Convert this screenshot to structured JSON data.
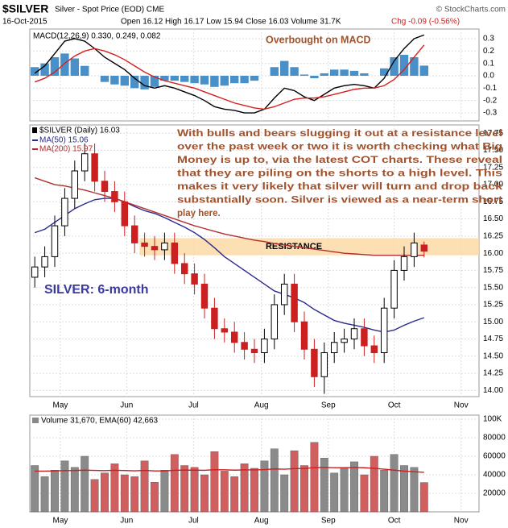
{
  "header": {
    "symbol": "$SILVER",
    "name": "Silver - Spot Price (EOD) CME",
    "source": "© StockCharts.com",
    "date": "16-Oct-2015",
    "summary": "Open 16.12 High 16.17 Low 15.94 Close 16.03 Volume 31.7K",
    "change": "Chg -0.09 (-0.56%)"
  },
  "chart_data": [
    {
      "type": "macd",
      "legend": "MACD(12,26,9) 0.330, 0.249, 0.082",
      "annotation": "Overbought on MACD",
      "xlim": [
        0,
        45
      ],
      "ylim": [
        -0.365,
        0.378
      ],
      "yticks": [
        0.3,
        0.2,
        0.1,
        {
          "value": 0,
          "label": "0.0"
        },
        -0.1,
        -0.2,
        -0.3
      ],
      "series": [
        {
          "name": "MACD",
          "color": "#000000",
          "values": [
            0.02,
            0.08,
            0.18,
            0.28,
            0.3,
            0.28,
            0.22,
            0.15,
            0.1,
            0.05,
            -0.02,
            -0.08,
            -0.1,
            -0.08,
            -0.1,
            -0.13,
            -0.16,
            -0.2,
            -0.25,
            -0.27,
            -0.28,
            -0.3,
            -0.3,
            -0.27,
            -0.18,
            -0.1,
            -0.12,
            -0.17,
            -0.2,
            -0.15,
            -0.1,
            -0.08,
            -0.07,
            -0.08,
            -0.1,
            -0.02,
            0.12,
            0.22,
            0.3,
            0.33
          ]
        },
        {
          "name": "Signal",
          "color": "#d62020",
          "values": [
            -0.05,
            -0.02,
            0.03,
            0.1,
            0.16,
            0.2,
            0.22,
            0.2,
            0.17,
            0.13,
            0.08,
            0.03,
            -0.01,
            -0.04,
            -0.06,
            -0.08,
            -0.1,
            -0.13,
            -0.16,
            -0.19,
            -0.22,
            -0.24,
            -0.26,
            -0.27,
            -0.25,
            -0.22,
            -0.19,
            -0.18,
            -0.18,
            -0.17,
            -0.15,
            -0.13,
            -0.11,
            -0.1,
            -0.1,
            -0.08,
            -0.03,
            0.05,
            0.15,
            0.249
          ]
        }
      ],
      "histogram": {
        "color": "#4a90c8",
        "values": [
          0.07,
          0.1,
          0.15,
          0.18,
          0.14,
          0.08,
          0.0,
          -0.05,
          -0.07,
          -0.08,
          -0.1,
          -0.11,
          -0.09,
          -0.04,
          -0.04,
          -0.05,
          -0.06,
          -0.07,
          -0.09,
          -0.08,
          -0.06,
          -0.06,
          -0.04,
          0.0,
          0.07,
          0.12,
          0.07,
          0.01,
          -0.02,
          0.02,
          0.05,
          0.05,
          0.04,
          0.02,
          0.0,
          0.06,
          0.15,
          0.17,
          0.15,
          0.082
        ]
      }
    },
    {
      "type": "candlestick",
      "legend": "$SILVER (Daily) 16.03",
      "label": "SILVER: 6-month",
      "annotation_lines": [
        "With bulls and bears slugging it out at a resistance level",
        "over the past week or two it is worth checking what Big",
        "Money is up to, via the latest COT charts. These reveal",
        "that they are piling on the shorts to a high level. This",
        "makes it very likely that silver will turn and drop back",
        "substantially soon. Silver is viewed as a near-term short",
        "play here."
      ],
      "resistance": {
        "label": "RESISTANCE",
        "range": [
          15.97,
          16.22
        ],
        "color": "#fbd9a6"
      },
      "xlim": [
        0,
        45
      ],
      "xticks": [
        {
          "value": 3.06,
          "label": "May"
        },
        {
          "value": 9.7,
          "label": "Jun"
        },
        {
          "value": 16.4,
          "label": "Jul"
        },
        {
          "value": 23.2,
          "label": "Aug"
        },
        {
          "value": 29.9,
          "label": "Sep"
        },
        {
          "value": 36.5,
          "label": "Oct"
        },
        {
          "value": 43.2,
          "label": "Nov"
        }
      ],
      "ylim": [
        13.91,
        17.87
      ],
      "yticks": [
        {
          "value": 17.75,
          "label": "17.75"
        },
        {
          "value": 17.5,
          "label": "17.50"
        },
        {
          "value": 17.25,
          "label": "17.25"
        },
        {
          "value": 17,
          "label": "17.00"
        },
        {
          "value": 16.75,
          "label": "16.75"
        },
        {
          "value": 16.5,
          "label": "16.50"
        },
        {
          "value": 16.25,
          "label": "16.25"
        },
        {
          "value": 16,
          "label": "16.00"
        },
        {
          "value": 15.75,
          "label": "15.75"
        },
        {
          "value": 15.5,
          "label": "15.50"
        },
        {
          "value": 15.25,
          "label": "15.25"
        },
        {
          "value": 15,
          "label": "15.00"
        },
        {
          "value": 14.75,
          "label": "14.75"
        },
        {
          "value": 14.5,
          "label": "14.50"
        },
        {
          "value": 14.25,
          "label": "14.25"
        },
        {
          "value": 14,
          "label": "14.00"
        }
      ],
      "up_color": "#000000",
      "down_color": "#cc1f1f",
      "open": [
        15.65,
        15.8,
        15.95,
        16.4,
        16.8,
        17.2,
        17.45,
        17.05,
        16.9,
        16.75,
        16.4,
        16.15,
        16.1,
        16.05,
        16.15,
        15.85,
        15.7,
        15.55,
        15.2,
        14.9,
        14.85,
        14.7,
        14.6,
        14.55,
        14.75,
        15.25,
        15.55,
        15.0,
        14.6,
        14.2,
        14.55,
        14.7,
        14.75,
        14.9,
        14.65,
        14.55,
        15.2,
        15.75,
        15.95,
        16.12
      ],
      "high": [
        15.95,
        16.1,
        16.55,
        16.95,
        17.35,
        17.6,
        17.6,
        17.2,
        17.05,
        16.9,
        16.55,
        16.3,
        16.25,
        16.3,
        16.3,
        16.0,
        15.85,
        15.7,
        15.35,
        15.05,
        15.0,
        14.85,
        14.75,
        14.9,
        15.4,
        15.7,
        15.7,
        15.15,
        14.75,
        14.7,
        14.85,
        14.9,
        15.05,
        15.05,
        14.8,
        15.35,
        15.9,
        16.1,
        16.3,
        16.17
      ],
      "low": [
        15.5,
        15.65,
        15.8,
        16.25,
        16.65,
        17.05,
        16.9,
        16.75,
        16.6,
        16.25,
        16.0,
        15.95,
        15.9,
        15.9,
        15.7,
        15.55,
        15.4,
        15.05,
        14.75,
        14.7,
        14.55,
        14.45,
        14.4,
        14.4,
        14.6,
        15.1,
        14.85,
        14.45,
        14.05,
        13.95,
        14.4,
        14.55,
        14.6,
        14.5,
        14.4,
        14.4,
        15.05,
        15.6,
        15.8,
        15.94
      ],
      "close": [
        15.8,
        15.95,
        16.4,
        16.8,
        17.2,
        17.45,
        17.05,
        16.9,
        16.75,
        16.4,
        16.15,
        16.1,
        16.05,
        16.15,
        15.85,
        15.7,
        15.55,
        15.2,
        14.9,
        14.85,
        14.7,
        14.6,
        14.55,
        14.75,
        15.25,
        15.55,
        15.0,
        14.6,
        14.2,
        14.55,
        14.7,
        14.75,
        14.9,
        14.65,
        14.55,
        15.2,
        15.75,
        15.95,
        16.15,
        16.03
      ],
      "series": [
        {
          "name": "MA(50) 15.06",
          "color": "#2b2b8c",
          "values": [
            16.3,
            16.35,
            16.45,
            16.55,
            16.65,
            16.72,
            16.78,
            16.8,
            16.8,
            16.75,
            16.68,
            16.62,
            16.58,
            16.52,
            16.45,
            16.38,
            16.3,
            16.2,
            16.08,
            15.95,
            15.85,
            15.75,
            15.65,
            15.55,
            15.45,
            15.4,
            15.35,
            15.28,
            15.18,
            15.1,
            15.02,
            14.98,
            14.95,
            14.92,
            14.88,
            14.85,
            14.88,
            14.95,
            15.01,
            15.06
          ]
        },
        {
          "name": "MA(200) 15.97",
          "color": "#b03030",
          "values": [
            17.1,
            17.05,
            17.0,
            16.98,
            16.95,
            16.92,
            16.88,
            16.84,
            16.8,
            16.75,
            16.7,
            16.65,
            16.6,
            16.55,
            16.5,
            16.45,
            16.4,
            16.36,
            16.32,
            16.28,
            16.25,
            16.22,
            16.19,
            16.17,
            16.14,
            16.12,
            16.1,
            16.08,
            16.06,
            16.04,
            16.02,
            16.0,
            15.99,
            15.98,
            15.97,
            15.97,
            15.97,
            15.97,
            15.97,
            15.97
          ]
        }
      ]
    },
    {
      "type": "volume",
      "legend": "Volume 31,670, EMA(60) 42,663",
      "xlim": [
        0,
        45
      ],
      "xticks": [
        {
          "value": 3.06,
          "label": "May"
        },
        {
          "value": 9.7,
          "label": "Jun"
        },
        {
          "value": 16.4,
          "label": "Jul"
        },
        {
          "value": 23.2,
          "label": "Aug"
        },
        {
          "value": 29.9,
          "label": "Sep"
        },
        {
          "value": 36.5,
          "label": "Oct"
        },
        {
          "value": 43.2,
          "label": "Nov"
        }
      ],
      "ylim": [
        0,
        104350
      ],
      "yticks": [
        {
          "value": 100000,
          "label": "100K"
        },
        80000,
        60000,
        40000,
        20000
      ],
      "up_color": "#8a8a8a",
      "down_color": "#d06060",
      "values": [
        50000,
        38000,
        45000,
        55000,
        48000,
        60000,
        35000,
        42000,
        52000,
        40000,
        38000,
        55000,
        32000,
        45000,
        62000,
        50000,
        48000,
        40000,
        65000,
        44000,
        38000,
        52000,
        47000,
        55000,
        68000,
        40000,
        66000,
        50000,
        75000,
        58000,
        42000,
        48000,
        54000,
        40000,
        60000,
        45000,
        62000,
        50000,
        48000,
        31670
      ],
      "ema": {
        "color": "#cc1f1f",
        "values": [
          44000,
          44000,
          44200,
          44500,
          44600,
          45000,
          44700,
          44500,
          44800,
          44600,
          44300,
          44700,
          44200,
          44200,
          44800,
          45000,
          45000,
          44800,
          45500,
          45400,
          45000,
          45300,
          45300,
          45600,
          46300,
          46000,
          46700,
          46800,
          47700,
          48000,
          47700,
          47700,
          47900,
          47600,
          47000,
          46000,
          45000,
          44000,
          43300,
          42663
        ]
      }
    }
  ]
}
